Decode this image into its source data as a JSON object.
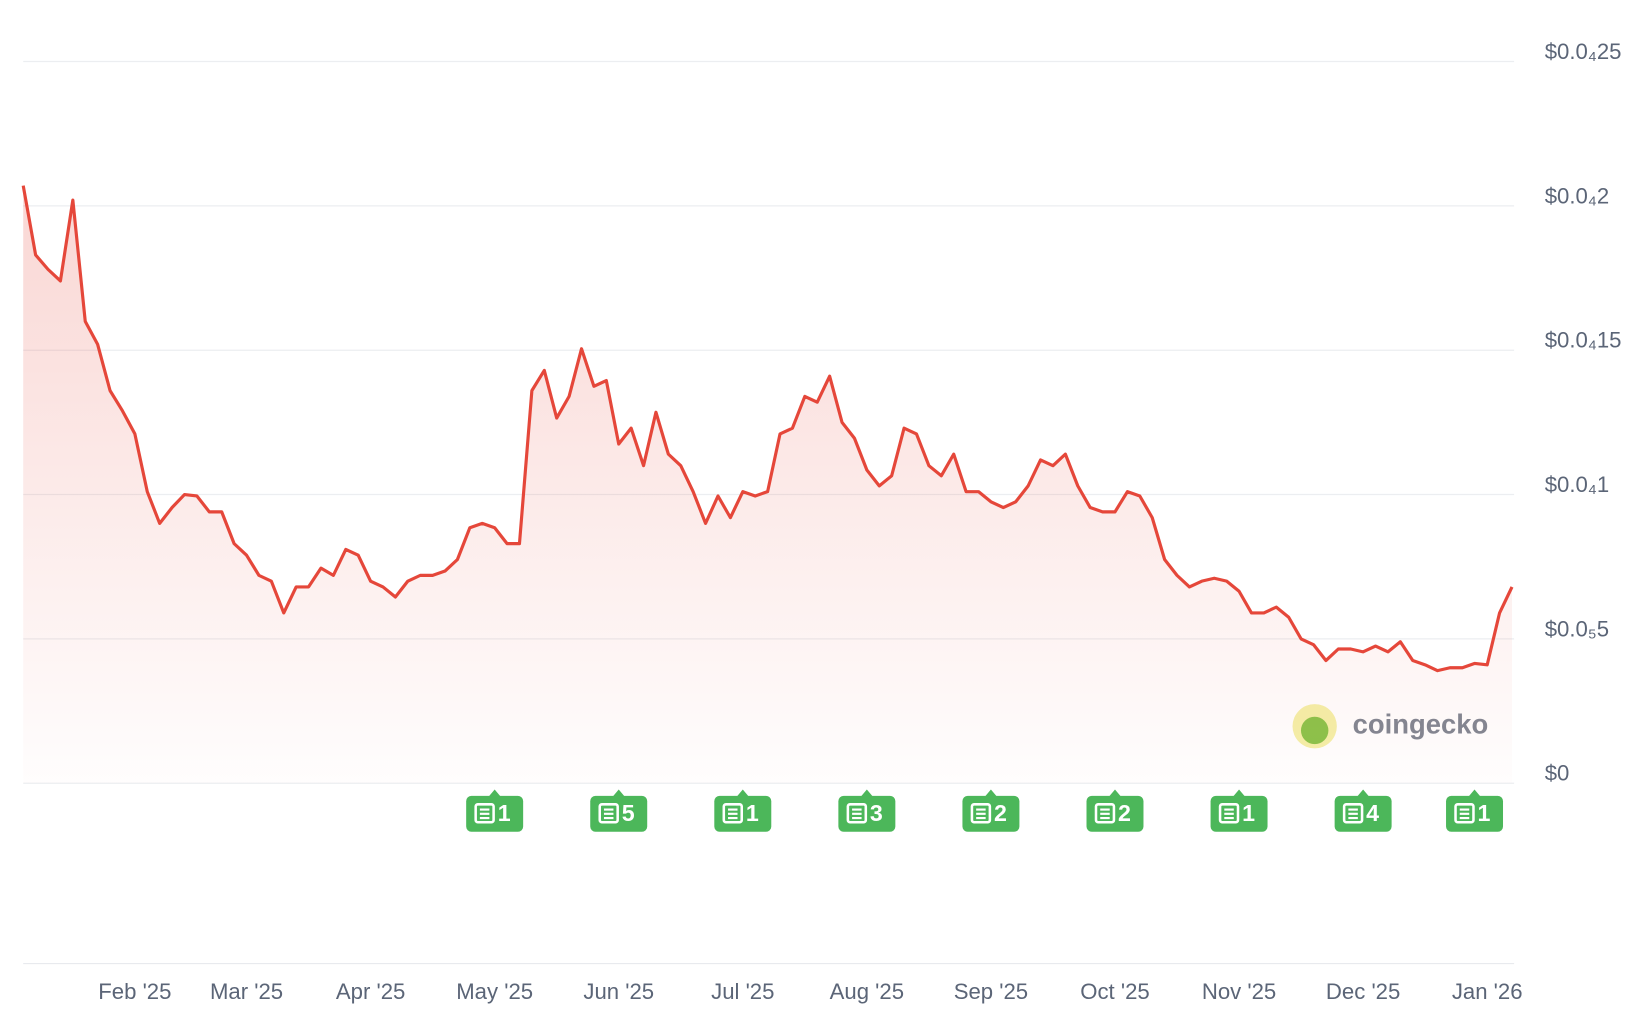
{
  "chart_data": {
    "type": "line",
    "categories": [
      null,
      null,
      null,
      null,
      null,
      null,
      null,
      null,
      null,
      "Feb '25",
      null,
      null,
      null,
      null,
      null,
      null,
      null,
      null,
      "Mar '25",
      null,
      null,
      null,
      null,
      null,
      null,
      null,
      null,
      null,
      "Apr '25",
      null,
      null,
      null,
      null,
      null,
      null,
      null,
      null,
      null,
      "May '25",
      null,
      null,
      null,
      null,
      null,
      null,
      null,
      null,
      null,
      "Jun '25",
      null,
      null,
      null,
      null,
      null,
      null,
      null,
      null,
      null,
      "Jul '25",
      null,
      null,
      null,
      null,
      null,
      null,
      null,
      null,
      null,
      "Aug '25",
      null,
      null,
      null,
      null,
      null,
      null,
      null,
      null,
      null,
      "Sep '25",
      null,
      null,
      null,
      null,
      null,
      null,
      null,
      null,
      null,
      "Oct '25",
      null,
      null,
      null,
      null,
      null,
      null,
      null,
      null,
      null,
      "Nov '25",
      null,
      null,
      null,
      null,
      null,
      null,
      null,
      null,
      null,
      "Dec '25",
      null,
      null,
      null,
      null,
      null,
      null,
      null,
      null,
      null,
      "Jan '26",
      null,
      null
    ],
    "values": [
      2.07e-06,
      1.83e-06,
      1.78e-06,
      1.74e-06,
      2.02e-06,
      1.6e-06,
      1.52e-06,
      1.36e-06,
      1.29e-06,
      1.21e-06,
      1.01e-06,
      9e-07,
      9.55e-07,
      1e-06,
      9.95e-07,
      9.4e-07,
      9.4e-07,
      8.3e-07,
      7.9e-07,
      7.2e-07,
      7e-07,
      5.9e-07,
      6.8e-07,
      6.8e-07,
      7.45e-07,
      7.2e-07,
      8.1e-07,
      7.9e-07,
      7e-07,
      6.8e-07,
      6.45e-07,
      7e-07,
      7.2e-07,
      7.2e-07,
      7.35e-07,
      7.75e-07,
      8.85e-07,
      9e-07,
      8.85e-07,
      8.3e-07,
      8.3e-07,
      1.36e-06,
      1.43e-06,
      1.265e-06,
      1.34e-06,
      1.505e-06,
      1.375e-06,
      1.395e-06,
      1.175e-06,
      1.23e-06,
      1.1e-06,
      1.285e-06,
      1.14e-06,
      1.1e-06,
      1.01e-06,
      9e-07,
      9.95e-07,
      9.2e-07,
      1.01e-06,
      9.95e-07,
      1.01e-06,
      1.21e-06,
      1.23e-06,
      1.34e-06,
      1.32e-06,
      1.41e-06,
      1.25e-06,
      1.195e-06,
      1.085e-06,
      1.03e-06,
      1.065e-06,
      1.23e-06,
      1.21e-06,
      1.1e-06,
      1.065e-06,
      1.14e-06,
      1.01e-06,
      1.01e-06,
      9.75e-07,
      9.55e-07,
      9.75e-07,
      1.03e-06,
      1.12e-06,
      1.1e-06,
      1.14e-06,
      1.03e-06,
      9.55e-07,
      9.4e-07,
      9.4e-07,
      1.01e-06,
      9.95e-07,
      9.2e-07,
      7.75e-07,
      7.2e-07,
      6.8e-07,
      7e-07,
      7.1e-07,
      7e-07,
      6.65e-07,
      5.9e-07,
      5.9e-07,
      6.1e-07,
      5.75e-07,
      5e-07,
      4.8e-07,
      4.25e-07,
      4.65e-07,
      4.65e-07,
      4.55e-07,
      4.75e-07,
      4.55e-07,
      4.9e-07,
      4.25e-07,
      4.1e-07,
      3.9e-07,
      4e-07,
      4e-07,
      4.15e-07,
      4.1e-07,
      5.9e-07,
      6.8e-07
    ],
    "color": "#e5473a",
    "ylim": [
      0,
      2.5e-06
    ],
    "yticks": [
      {
        "value": 0,
        "label": "$0"
      },
      {
        "value": 5e-07,
        "label": "$0.0₅5"
      },
      {
        "value": 1e-06,
        "label": "$0.0₄1"
      },
      {
        "value": 1.5e-06,
        "label": "$0.0₄15"
      },
      {
        "value": 2e-06,
        "label": "$0.0₄2"
      },
      {
        "value": 2.5e-06,
        "label": "$0.0₄25"
      }
    ],
    "grid": true,
    "news_counts": [
      1,
      5,
      1,
      3,
      2,
      2,
      1,
      4,
      1
    ],
    "watermark": "coingecko"
  }
}
